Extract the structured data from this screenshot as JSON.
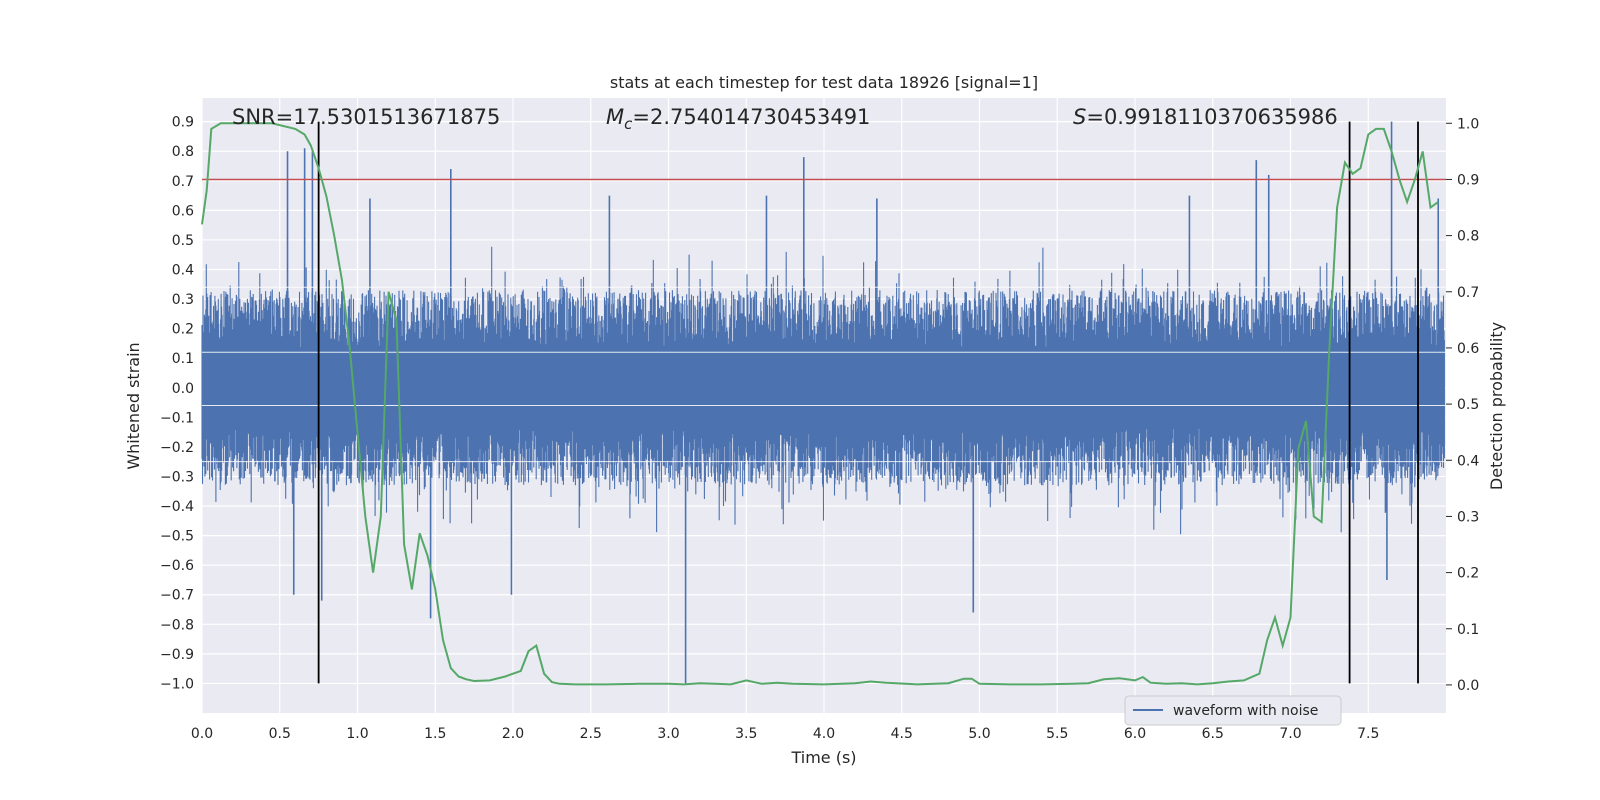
{
  "chart_data": {
    "type": "line",
    "title": "stats at each timestep for test data 18926 [signal=1]",
    "xlabel": "Time (s)",
    "ylabel": "Whitened strain",
    "y2label": "Detection probability",
    "xlim": [
      0.0,
      8.0
    ],
    "ylim": [
      -1.1,
      0.98
    ],
    "y2lim": [
      -0.05,
      1.045
    ],
    "xticks": [
      0.0,
      0.5,
      1.0,
      1.5,
      2.0,
      2.5,
      3.0,
      3.5,
      4.0,
      4.5,
      5.0,
      5.5,
      6.0,
      6.5,
      7.0,
      7.5
    ],
    "xtick_labels": [
      "0.0",
      "0.5",
      "1.0",
      "1.5",
      "2.0",
      "2.5",
      "3.0",
      "3.5",
      "4.0",
      "4.5",
      "5.0",
      "5.5",
      "6.0",
      "6.5",
      "7.0",
      "7.5"
    ],
    "yticks": [
      -1.0,
      -0.9,
      -0.8,
      -0.7,
      -0.6,
      -0.5,
      -0.4,
      -0.3,
      -0.2,
      -0.1,
      0.0,
      0.1,
      0.2,
      0.3,
      0.4,
      0.5,
      0.6,
      0.7,
      0.8,
      0.9
    ],
    "ytick_labels": [
      "−1.0",
      "−0.9",
      "−0.8",
      "−0.7",
      "−0.6",
      "−0.5",
      "−0.4",
      "−0.3",
      "−0.2",
      "−0.1",
      "0.0",
      "0.1",
      "0.2",
      "0.3",
      "0.4",
      "0.5",
      "0.6",
      "0.7",
      "0.8",
      "0.9"
    ],
    "y2ticks": [
      0.0,
      0.1,
      0.2,
      0.3,
      0.4,
      0.5,
      0.6,
      0.7,
      0.8,
      0.9,
      1.0
    ],
    "y2tick_labels": [
      "0.0",
      "0.1",
      "0.2",
      "0.3",
      "0.4",
      "0.5",
      "0.6",
      "0.7",
      "0.8",
      "0.9",
      "1.0"
    ],
    "grid": true,
    "annotations": {
      "snr": "SNR=17.5301513671875",
      "mc_symbol": "M",
      "mc_sub": "c",
      "mc_value": "=2.754014730453491",
      "s_symbol": "S",
      "s_value": "=0.9918110370635986"
    },
    "threshold": {
      "y2": 0.9,
      "color": "#c44e52"
    },
    "vertical_lines": [
      {
        "x": 0.75,
        "y_from": -1.0,
        "y_to": 0.9
      },
      {
        "x": 7.38,
        "y_from": -1.0,
        "y_to": 0.9
      },
      {
        "x": 7.82,
        "y_from": -1.0,
        "y_to": 0.9
      }
    ],
    "series": [
      {
        "name": "waveform with noise",
        "color": "#4c72b0",
        "axis": "left",
        "description": "dense whitened strain trace 0.0–8.0 s, band roughly ±0.3 with spikes",
        "band": 0.3,
        "spikes": [
          {
            "x": 0.55,
            "y": 0.8
          },
          {
            "x": 0.66,
            "y": 0.81
          },
          {
            "x": 0.71,
            "y": 0.8
          },
          {
            "x": 0.59,
            "y": -0.7
          },
          {
            "x": 0.77,
            "y": -0.72
          },
          {
            "x": 1.08,
            "y": 0.64
          },
          {
            "x": 1.47,
            "y": -0.78
          },
          {
            "x": 1.6,
            "y": 0.74
          },
          {
            "x": 1.99,
            "y": -0.7
          },
          {
            "x": 3.11,
            "y": -1.0
          },
          {
            "x": 3.87,
            "y": 0.78
          },
          {
            "x": 4.96,
            "y": -0.76
          },
          {
            "x": 6.78,
            "y": 0.77
          },
          {
            "x": 6.86,
            "y": 0.72
          },
          {
            "x": 7.65,
            "y": 0.9
          },
          {
            "x": 7.62,
            "y": -0.65
          },
          {
            "x": 7.95,
            "y": 0.64
          },
          {
            "x": 2.62,
            "y": 0.65
          },
          {
            "x": 4.34,
            "y": 0.64
          },
          {
            "x": 6.35,
            "y": 0.65
          },
          {
            "x": 3.63,
            "y": 0.65
          }
        ]
      },
      {
        "name": "Detection probability",
        "color": "#55a868",
        "axis": "right",
        "x": [
          0.0,
          0.03,
          0.06,
          0.12,
          0.2,
          0.3,
          0.45,
          0.6,
          0.66,
          0.7,
          0.75,
          0.8,
          0.85,
          0.9,
          0.95,
          1.0,
          1.05,
          1.1,
          1.15,
          1.2,
          1.25,
          1.3,
          1.35,
          1.4,
          1.45,
          1.5,
          1.55,
          1.6,
          1.65,
          1.7,
          1.75,
          1.85,
          1.95,
          2.05,
          2.1,
          2.15,
          2.2,
          2.25,
          2.3,
          2.4,
          2.6,
          2.8,
          3.0,
          3.1,
          3.2,
          3.3,
          3.4,
          3.5,
          3.6,
          3.7,
          3.8,
          4.0,
          4.2,
          4.3,
          4.4,
          4.6,
          4.8,
          4.9,
          4.95,
          5.0,
          5.2,
          5.4,
          5.6,
          5.7,
          5.8,
          5.9,
          6.0,
          6.05,
          6.1,
          6.2,
          6.3,
          6.4,
          6.5,
          6.6,
          6.7,
          6.8,
          6.85,
          6.9,
          6.95,
          7.0,
          7.05,
          7.1,
          7.15,
          7.2,
          7.25,
          7.3,
          7.35,
          7.4,
          7.45,
          7.5,
          7.55,
          7.6,
          7.65,
          7.7,
          7.75,
          7.8,
          7.85,
          7.9,
          7.95
        ],
        "values": [
          0.82,
          0.88,
          0.99,
          1.0,
          1.0,
          1.0,
          1.0,
          0.99,
          0.98,
          0.96,
          0.92,
          0.87,
          0.8,
          0.72,
          0.6,
          0.45,
          0.3,
          0.2,
          0.3,
          0.7,
          0.65,
          0.25,
          0.17,
          0.27,
          0.23,
          0.17,
          0.08,
          0.03,
          0.015,
          0.01,
          0.007,
          0.008,
          0.015,
          0.025,
          0.06,
          0.07,
          0.02,
          0.005,
          0.002,
          0.001,
          0.001,
          0.002,
          0.002,
          0.001,
          0.003,
          0.002,
          0.001,
          0.008,
          0.002,
          0.004,
          0.002,
          0.001,
          0.003,
          0.006,
          0.004,
          0.001,
          0.003,
          0.011,
          0.011,
          0.002,
          0.001,
          0.001,
          0.002,
          0.003,
          0.01,
          0.012,
          0.008,
          0.014,
          0.004,
          0.002,
          0.003,
          0.001,
          0.003,
          0.006,
          0.008,
          0.02,
          0.08,
          0.12,
          0.07,
          0.12,
          0.42,
          0.47,
          0.3,
          0.29,
          0.6,
          0.85,
          0.93,
          0.91,
          0.92,
          0.98,
          0.99,
          0.99,
          0.95,
          0.9,
          0.86,
          0.9,
          0.95,
          0.85,
          0.86
        ]
      }
    ],
    "legend": {
      "entries": [
        "waveform with noise"
      ],
      "placement": "lower-right"
    }
  }
}
